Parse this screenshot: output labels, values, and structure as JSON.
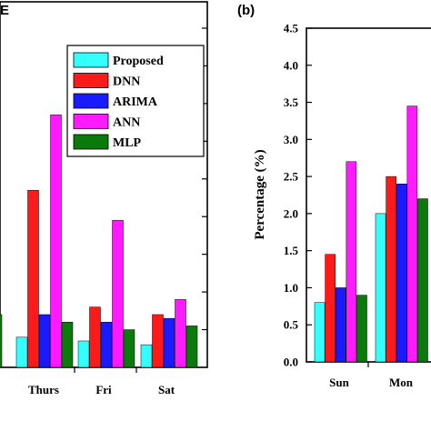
{
  "chart_data": [
    {
      "type": "bar",
      "panel": "E",
      "categories": [
        "",
        "Thurs",
        "Fri",
        "Sat"
      ],
      "ylim": [
        0,
        4.5
      ],
      "series": [
        {
          "name": "Proposed",
          "color": "#33ffff",
          "values": [
            null,
            0.4,
            0.35,
            0.3
          ]
        },
        {
          "name": "DNN",
          "color": "#ff1a1a",
          "values": [
            null,
            2.35,
            0.8,
            0.7
          ]
        },
        {
          "name": "ARIMA",
          "color": "#1a1aff",
          "values": [
            null,
            0.7,
            0.6,
            0.65
          ]
        },
        {
          "name": "ANN",
          "color": "#ff1aff",
          "values": [
            null,
            3.35,
            1.95,
            0.9
          ]
        },
        {
          "name": "MLP",
          "color": "#0a7a0a",
          "values": [
            0.7,
            0.6,
            0.5,
            0.55
          ]
        }
      ],
      "legend": "top-right",
      "grid": false
    },
    {
      "type": "bar",
      "panel": "(b)",
      "ylabel": "Percentage (%)",
      "categories": [
        "Sun",
        "Mon"
      ],
      "ylim": [
        0,
        4.5
      ],
      "yticks": [
        "0.0",
        "0.5",
        "1.0",
        "1.5",
        "2.0",
        "2.5",
        "3.0",
        "3.5",
        "4.0",
        "4.5"
      ],
      "series": [
        {
          "name": "Proposed",
          "color": "#33ffff",
          "values": [
            0.8,
            2.0
          ]
        },
        {
          "name": "DNN",
          "color": "#ff1a1a",
          "values": [
            1.45,
            2.5
          ]
        },
        {
          "name": "ARIMA",
          "color": "#1a1aff",
          "values": [
            1.0,
            2.4
          ]
        },
        {
          "name": "ANN",
          "color": "#ff1aff",
          "values": [
            2.7,
            3.45
          ]
        },
        {
          "name": "MLP",
          "color": "#0a7a0a",
          "values": [
            0.9,
            2.2
          ]
        }
      ],
      "grid": false
    }
  ]
}
